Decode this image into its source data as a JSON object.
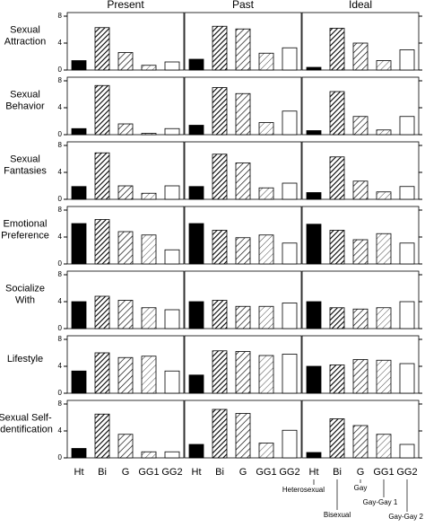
{
  "chart_data": {
    "type": "bar",
    "columns": [
      "Present",
      "Past",
      "Ideal"
    ],
    "categories": [
      "Ht",
      "Bi",
      "G",
      "GG1",
      "GG2"
    ],
    "category_names": [
      "Heterosexual",
      "Bisexual",
      "Gay",
      "Gay-Gay 1",
      "Gay-Gay 2"
    ],
    "ylim": [
      0,
      8
    ],
    "yticks": [
      0,
      4,
      8
    ],
    "rows": [
      {
        "label": [
          "Sexual",
          "Attraction"
        ],
        "values": [
          [
            1.4,
            6.3,
            2.6,
            0.7,
            1.2
          ],
          [
            1.6,
            6.5,
            6.1,
            2.5,
            3.3
          ],
          [
            0.4,
            6.2,
            4.0,
            1.4,
            3.0
          ]
        ]
      },
      {
        "label": [
          "Sexual",
          "Behavior"
        ],
        "values": [
          [
            0.9,
            7.3,
            1.6,
            0.2,
            0.9
          ],
          [
            1.4,
            7.0,
            6.1,
            1.8,
            3.5
          ],
          [
            0.6,
            6.4,
            2.7,
            0.7,
            2.7
          ]
        ]
      },
      {
        "label": [
          "Sexual",
          "Fantasies"
        ],
        "values": [
          [
            1.9,
            6.9,
            2.0,
            0.9,
            2.0
          ],
          [
            1.9,
            6.7,
            5.4,
            1.7,
            2.4
          ],
          [
            1.0,
            6.3,
            2.7,
            1.1,
            1.9
          ]
        ]
      },
      {
        "label": [
          "Emotional",
          "Preference"
        ],
        "values": [
          [
            6.0,
            6.6,
            4.8,
            4.3,
            2.1
          ],
          [
            6.0,
            5.0,
            3.9,
            4.3,
            3.1
          ],
          [
            5.9,
            5.0,
            3.6,
            4.5,
            3.1
          ]
        ]
      },
      {
        "label": [
          "Socialize",
          "With"
        ],
        "values": [
          [
            4.0,
            4.8,
            4.2,
            3.1,
            2.8
          ],
          [
            4.0,
            4.2,
            3.3,
            3.3,
            3.8
          ],
          [
            4.0,
            3.1,
            2.9,
            3.1,
            4.0
          ]
        ]
      },
      {
        "label": [
          "Lifestyle"
        ],
        "values": [
          [
            3.3,
            6.0,
            5.3,
            5.5,
            3.3
          ],
          [
            2.7,
            6.3,
            6.2,
            5.6,
            5.8
          ],
          [
            4.0,
            4.2,
            5.0,
            4.9,
            4.4
          ]
        ]
      },
      {
        "label": [
          "Sexual Self-",
          "Identification"
        ],
        "values": [
          [
            1.4,
            6.5,
            3.5,
            0.9,
            0.9
          ],
          [
            2.0,
            7.2,
            6.6,
            2.2,
            4.1
          ],
          [
            0.8,
            5.8,
            4.8,
            3.5,
            2.0
          ]
        ]
      }
    ]
  }
}
